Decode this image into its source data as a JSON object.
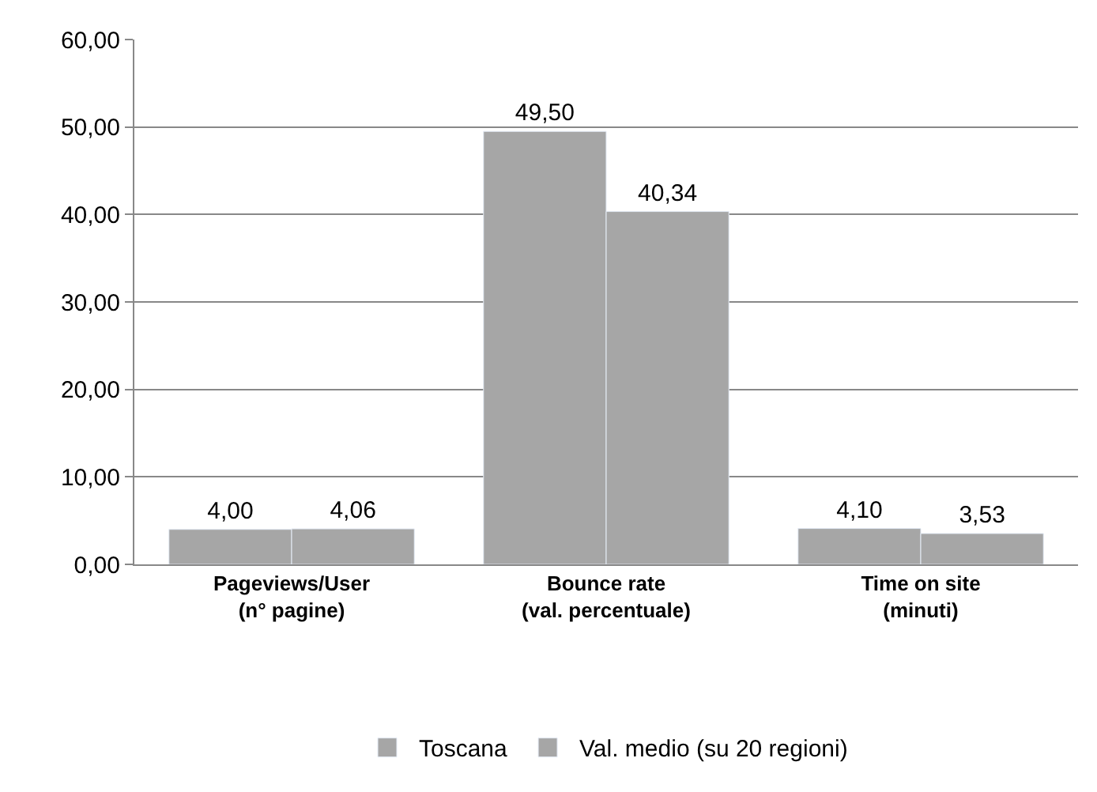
{
  "chart_data": {
    "type": "bar",
    "categories": [
      "Pageviews/User\n(n° pagine)",
      "Bounce rate\n(val. percentuale)",
      "Time on site\n(minuti)"
    ],
    "series": [
      {
        "name": "Toscana",
        "color": "#a6a6a6",
        "values": [
          4.0,
          49.5,
          4.1
        ],
        "value_labels": [
          "4,00",
          "49,50",
          "4,10"
        ]
      },
      {
        "name": "Val. medio (su 20 regioni)",
        "color": "#a6a6a6",
        "values": [
          4.06,
          40.34,
          3.53
        ],
        "value_labels": [
          "4,06",
          "40,34",
          "3,53"
        ]
      }
    ],
    "ylim": [
      0,
      60
    ],
    "yticks": [
      {
        "value": 0,
        "label": "0,00"
      },
      {
        "value": 10,
        "label": "10,00"
      },
      {
        "value": 20,
        "label": "20,00"
      },
      {
        "value": 30,
        "label": "30,00"
      },
      {
        "value": 40,
        "label": "40,00"
      },
      {
        "value": 50,
        "label": "50,00"
      },
      {
        "value": 60,
        "label": "60,00"
      }
    ],
    "grid": "y",
    "legend": "bottom"
  }
}
